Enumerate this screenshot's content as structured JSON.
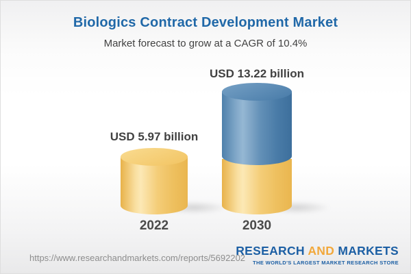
{
  "header": {
    "title": "Biologics Contract Development Market",
    "subtitle": "Market forecast to grow at a CAGR of 10.4%"
  },
  "chart_data": {
    "type": "bar",
    "categories": [
      "2022",
      "2030"
    ],
    "values": [
      5.97,
      13.22
    ],
    "unit": "USD billion",
    "value_labels": [
      "USD 5.97 billion",
      "USD 13.22 billion"
    ],
    "title": "Biologics Contract Development Market",
    "subtitle": "Market forecast to grow at a CAGR of 10.4%",
    "cagr_percent": 10.4,
    "bar_style": "3d-cylinder",
    "series_note": "2030 bar is stacked: base equal to 2022 value shown yellow, growth portion shown blue",
    "colors": {
      "base_yellow": "#f2c566",
      "growth_blue": "#4d7fab",
      "title_blue": "#2068a8",
      "label_gray": "#414141"
    },
    "legend": "none",
    "axes": "none"
  },
  "bars": [
    {
      "value_label": "USD 5.97 billion",
      "year": "2022"
    },
    {
      "value_label": "USD 13.22 billion",
      "year": "2030"
    }
  ],
  "footer": {
    "url": "https://www.researchandmarkets.com/reports/5692202",
    "logo": {
      "word1": "RESEARCH",
      "word2": "AND",
      "word3": "MARKETS",
      "tagline": "THE WORLD'S LARGEST MARKET RESEARCH STORE",
      "brand_blue": "#1c5fa4",
      "brand_orange": "#f2a83b"
    }
  }
}
